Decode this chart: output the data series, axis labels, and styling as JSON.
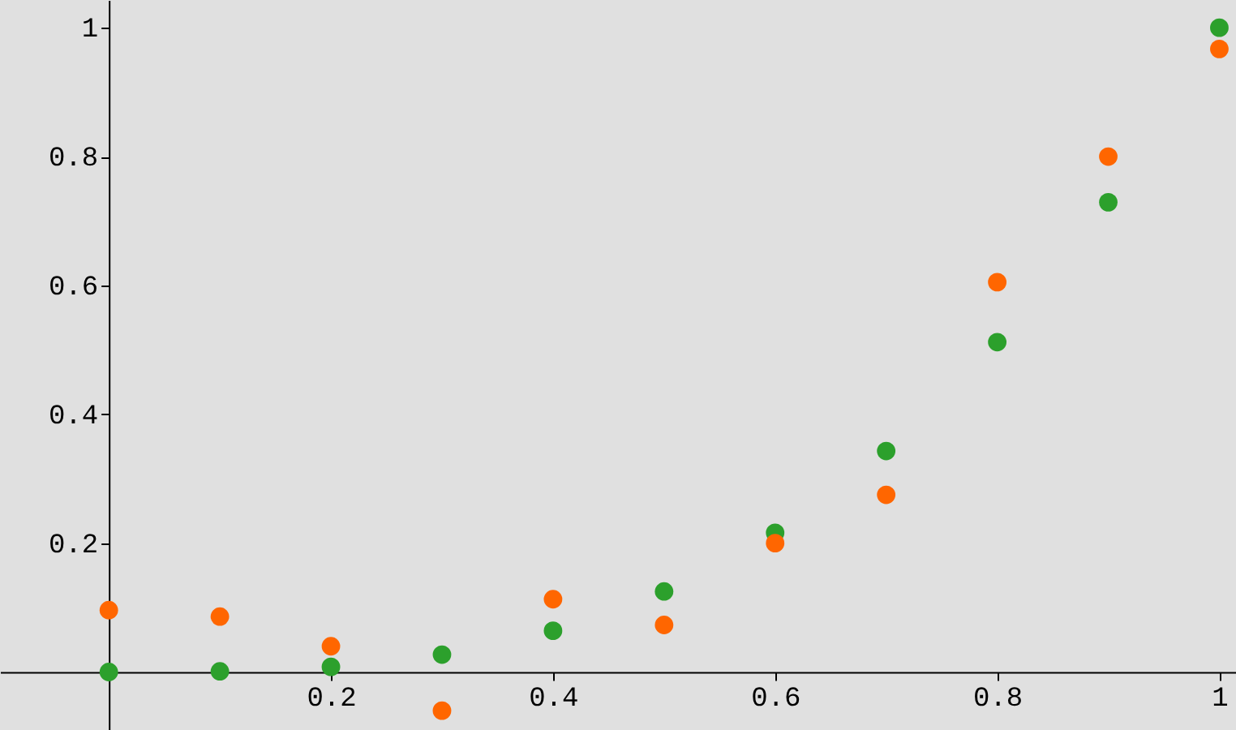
{
  "chart_data": {
    "type": "scatter",
    "marker": "circle",
    "x": [
      0,
      0.1,
      0.2,
      0.3,
      0.4,
      0.5,
      0.6,
      0.7,
      0.8,
      0.9,
      1
    ],
    "series": [
      {
        "color": "#2ca02c",
        "values": [
          0,
          0.001,
          0.008,
          0.027,
          0.064,
          0.125,
          0.216,
          0.343,
          0.512,
          0.729,
          1
        ]
      },
      {
        "color": "#ff6600",
        "values": [
          0.096,
          0.086,
          0.04,
          -0.06,
          0.113,
          0.073,
          0.2,
          0.275,
          0.605,
          0.8,
          0.967
        ]
      }
    ],
    "xlim": [
      -0.098,
      1.015
    ],
    "ylim": [
      -0.09,
      1.043
    ],
    "xticks": [
      0.2,
      0.4,
      0.6,
      0.8,
      1
    ],
    "yticks": [
      0.2,
      0.4,
      0.6,
      0.8,
      1
    ]
  }
}
